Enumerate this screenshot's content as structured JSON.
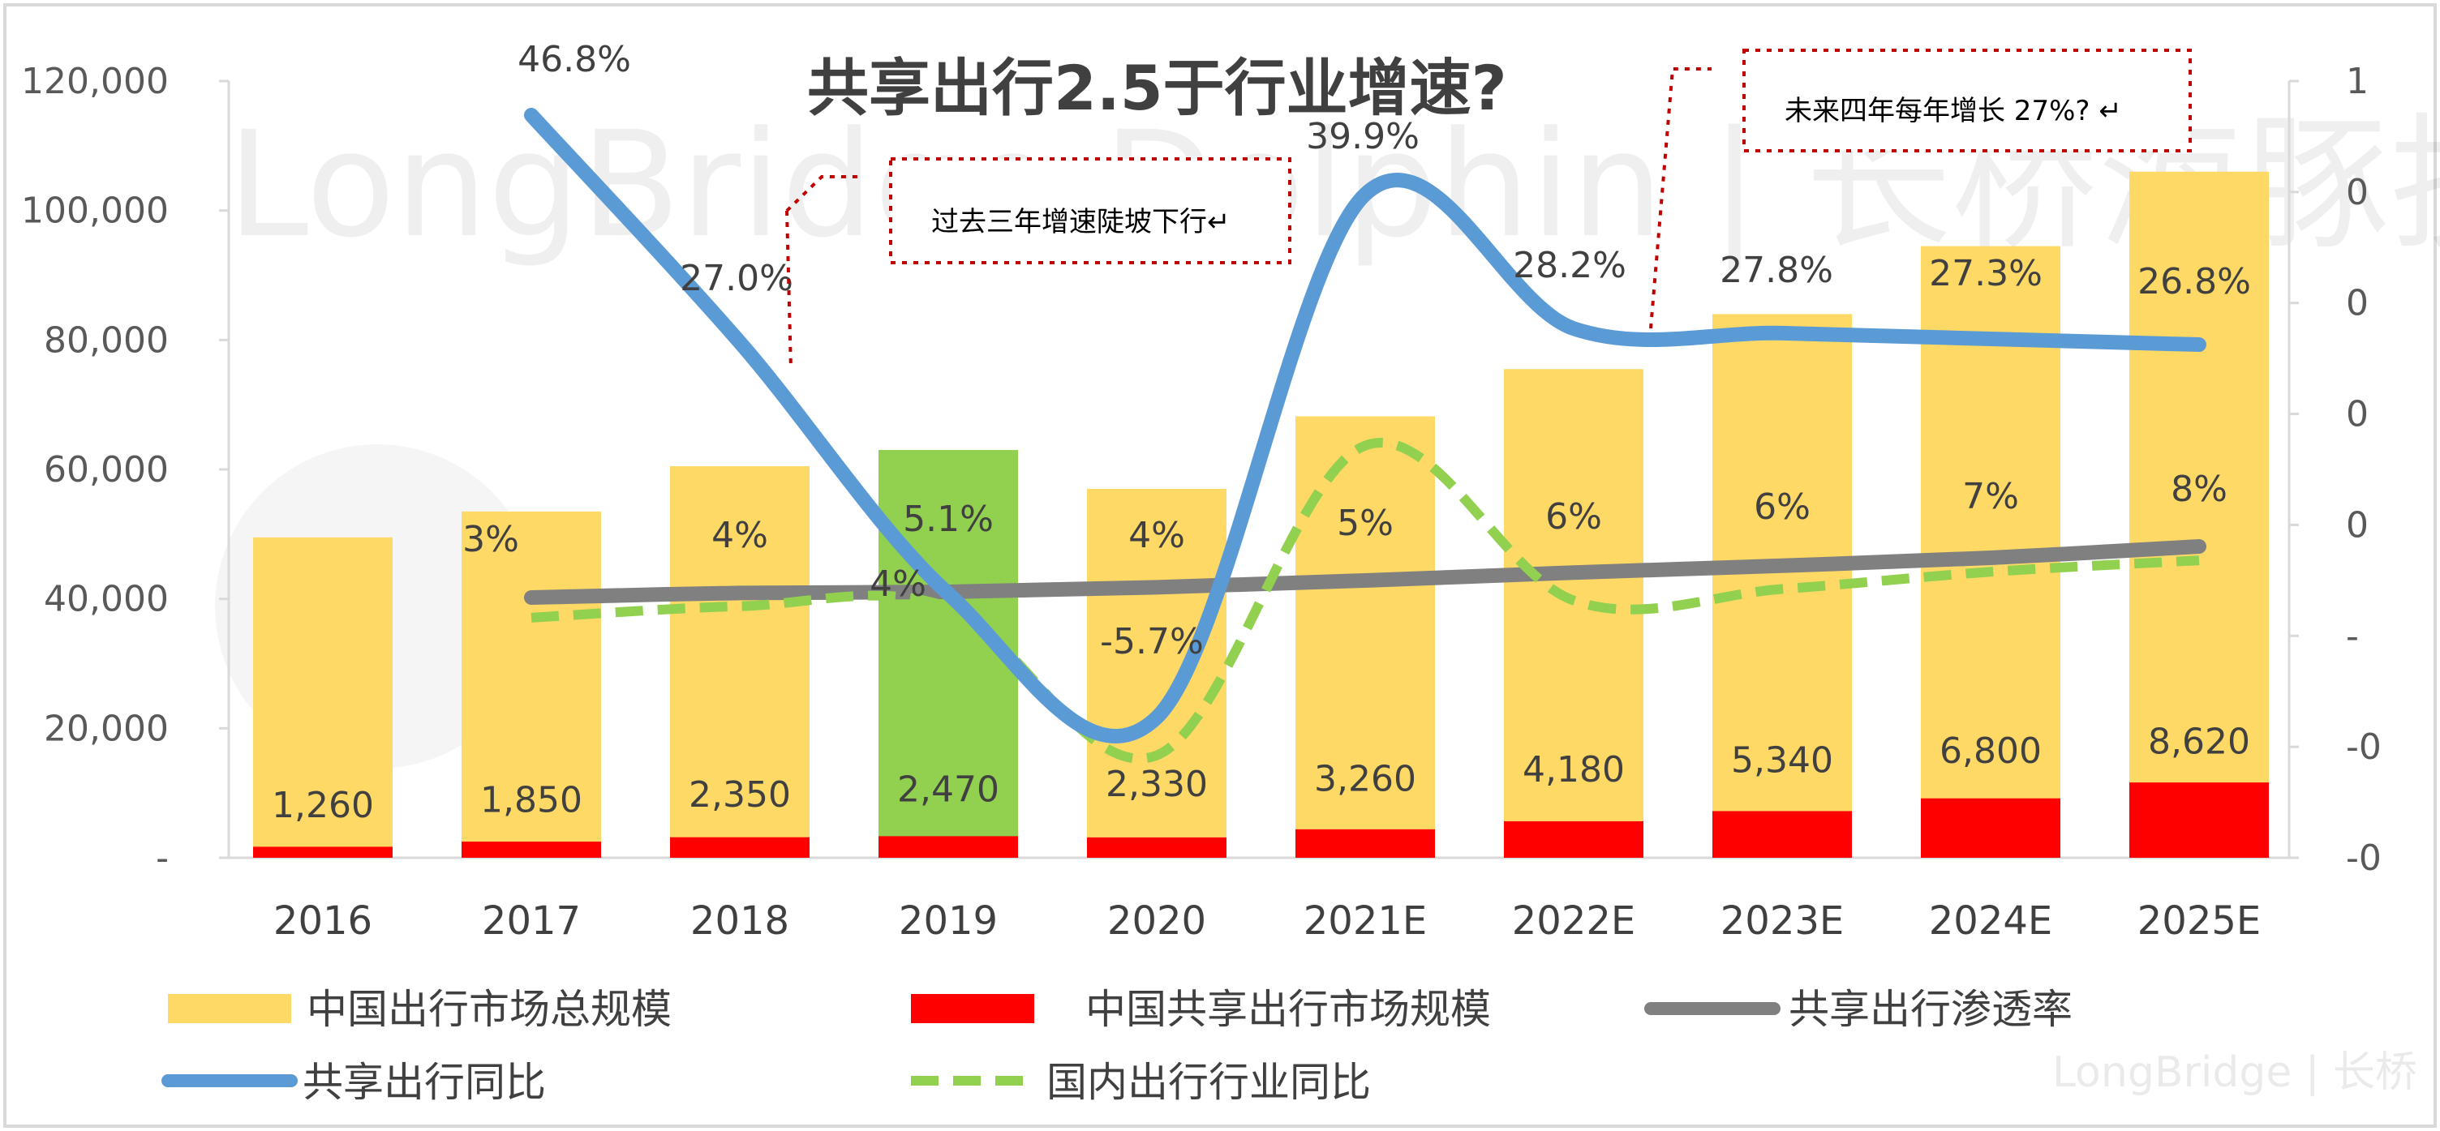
{
  "chart_data": {
    "type": "bar",
    "title": "共享出行2.5于行业增速?",
    "categories": [
      "2016",
      "2017",
      "2018",
      "2019",
      "2020",
      "2021E",
      "2022E",
      "2023E",
      "2024E",
      "2025E"
    ],
    "highlight_category": "2019",
    "y_left": {
      "ticks": [
        "120,000",
        "100,000",
        "80,000",
        "60,000",
        "40,000",
        "20,000",
        "-"
      ],
      "ylim": [
        0,
        120000
      ]
    },
    "y_right": {
      "ticks": [
        "1",
        "0",
        "0",
        "0",
        "0",
        "-",
        "-0",
        "-0"
      ]
    },
    "series": [
      {
        "name": "中国出行市场总规模",
        "type": "bar",
        "color": "#FFD966",
        "highlight_color": "#92D050",
        "values": [
          49500,
          53500,
          60500,
          63000,
          57000,
          68200,
          75500,
          84000,
          94500,
          106000
        ],
        "labels": [
          "",
          "3%",
          "4%",
          "5.1%",
          "4%",
          "5%",
          "6%",
          "6%",
          "7%",
          "8%"
        ]
      },
      {
        "name": "中国共享出行市场规模",
        "type": "bar",
        "color": "#FF0000",
        "values": [
          1260,
          1850,
          2350,
          2470,
          2330,
          3260,
          4180,
          5340,
          6800,
          8620
        ],
        "labels": [
          "1,260",
          "1,850",
          "2,350",
          "2,470",
          "2,330",
          "3,260",
          "4,180",
          "5,340",
          "6,800",
          "8,620"
        ]
      },
      {
        "name": "共享出行渗透率",
        "type": "line",
        "color": "#808080",
        "values": [
          null,
          2.5,
          2.9,
          3.0,
          3.4,
          4.0,
          4.7,
          5.3,
          6.0,
          7.0
        ]
      },
      {
        "name": "共享出行同比",
        "type": "line",
        "color": "#5B9BD5",
        "values": [
          null,
          46.8,
          27.0,
          5.1,
          -5.7,
          39.9,
          28.2,
          27.8,
          27.3,
          26.8
        ],
        "labels": [
          "",
          "46.8%",
          "27.0%",
          "",
          "-5.7%",
          "39.9%",
          "28.2%",
          "27.8%",
          "27.3%",
          "26.8%"
        ]
      },
      {
        "name": "国内出行行业同比",
        "type": "line",
        "style": "dashed",
        "color": "#92D050",
        "values": [
          null,
          3.0,
          4.0,
          3.9,
          -9.0,
          18.0,
          4.5,
          5.5,
          7.0,
          8.0
        ],
        "labels": [
          "",
          "",
          "",
          "4%",
          "",
          "",
          "",
          "",
          "",
          ""
        ]
      }
    ],
    "annotations": [
      {
        "text": "过去三年增速陡坡下行↵"
      },
      {
        "text": "未来四年每年增长 27%? ↵"
      }
    ],
    "legend_position": "bottom"
  },
  "watermark": {
    "main": "LongBridge Dolphin | 长桥海豚投研",
    "footer": "LongBridge | 长桥"
  }
}
